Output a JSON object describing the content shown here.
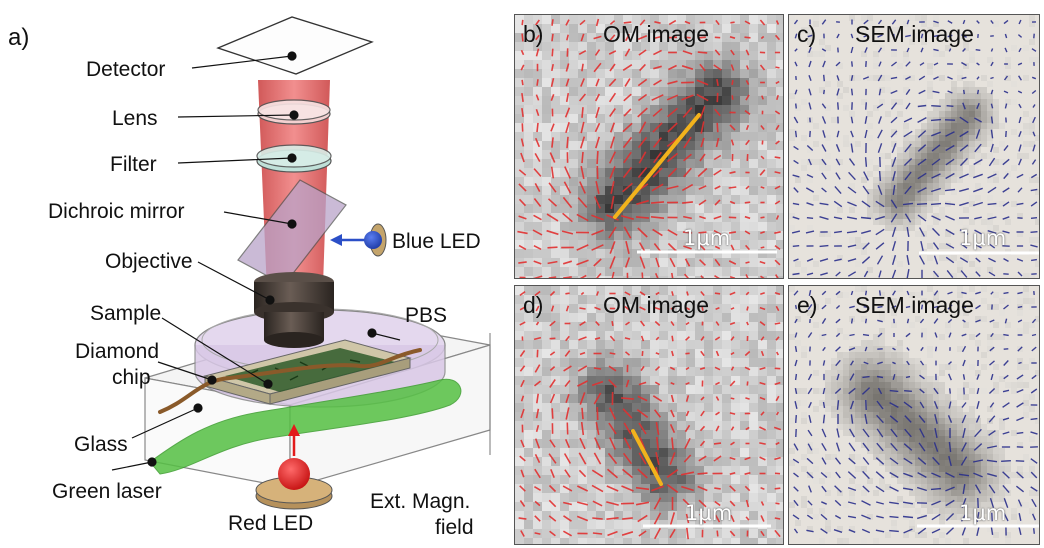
{
  "setup": {
    "panel_label": "a)",
    "labels": {
      "detector": "Detector",
      "lens": "Lens",
      "filter": "Filter",
      "dichroic_mirror": "Dichroic mirror",
      "objective": "Objective",
      "blue_led": "Blue LED",
      "sample": "Sample",
      "pbs": "PBS",
      "diamond_line1": "Diamond",
      "diamond_line2": "chip",
      "glass": "Glass",
      "green_laser": "Green laser",
      "red_led": "Red LED",
      "ext_line1": "Ext. Magn.",
      "ext_line2": "field"
    },
    "colors": {
      "red_beam": "#e05555",
      "blue_led": "#2b4fc7",
      "green_laser": "#55c043",
      "red_led": "#e21b1b",
      "objective": "#3d3530",
      "mirror": "#b9a3c9"
    }
  },
  "panels": [
    {
      "label": "b)",
      "title": "OM image",
      "scale": "1μm",
      "arrow_color": "#e23030",
      "has_line": true
    },
    {
      "label": "c)",
      "title": "SEM image",
      "scale": "1μm",
      "arrow_color": "#2a2f8c",
      "has_line": false
    },
    {
      "label": "d)",
      "title": "OM image",
      "scale": "1μm",
      "arrow_color": "#e23030",
      "has_line": true
    },
    {
      "label": "e)",
      "title": "SEM image",
      "scale": "1μm",
      "arrow_color": "#2a2f8c",
      "has_line": false
    }
  ],
  "line_color": "#f2b31c"
}
